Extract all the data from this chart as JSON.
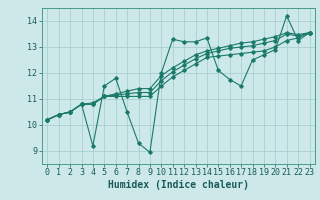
{
  "xlabel": "Humidex (Indice chaleur)",
  "bg_color": "#cce8e8",
  "grid_color": "#aad0d0",
  "line_color": "#1a7a6a",
  "x_data": [
    0,
    1,
    2,
    3,
    4,
    5,
    6,
    7,
    8,
    9,
    10,
    11,
    12,
    13,
    14,
    15,
    16,
    17,
    18,
    19,
    20,
    21,
    22,
    23
  ],
  "series": [
    [
      10.2,
      10.4,
      10.5,
      10.8,
      9.2,
      11.5,
      11.8,
      10.5,
      9.3,
      8.95,
      12.0,
      13.3,
      13.2,
      13.2,
      13.35,
      12.1,
      11.75,
      11.5,
      12.5,
      12.7,
      12.9,
      14.2,
      13.25,
      13.55
    ],
    [
      10.2,
      10.4,
      10.5,
      10.8,
      10.8,
      11.1,
      11.1,
      11.1,
      11.1,
      11.1,
      11.5,
      11.85,
      12.1,
      12.35,
      12.6,
      12.65,
      12.7,
      12.75,
      12.8,
      12.85,
      13.0,
      13.25,
      13.35,
      13.55
    ],
    [
      10.2,
      10.4,
      10.5,
      10.8,
      10.8,
      11.1,
      11.15,
      11.2,
      11.25,
      11.25,
      11.7,
      12.05,
      12.3,
      12.55,
      12.75,
      12.85,
      12.95,
      13.0,
      13.05,
      13.15,
      13.25,
      13.5,
      13.42,
      13.55
    ],
    [
      10.2,
      10.4,
      10.5,
      10.8,
      10.85,
      11.1,
      11.2,
      11.3,
      11.4,
      11.4,
      11.9,
      12.2,
      12.45,
      12.7,
      12.85,
      12.95,
      13.05,
      13.15,
      13.2,
      13.3,
      13.4,
      13.55,
      13.48,
      13.55
    ]
  ],
  "ylim": [
    8.5,
    14.5
  ],
  "yticks": [
    9,
    10,
    11,
    12,
    13,
    14
  ],
  "xticks": [
    0,
    1,
    2,
    3,
    4,
    5,
    6,
    7,
    8,
    9,
    10,
    11,
    12,
    13,
    14,
    15,
    16,
    17,
    18,
    19,
    20,
    21,
    22,
    23
  ],
  "xlim": [
    -0.5,
    23.5
  ],
  "tick_fontsize": 6,
  "xlabel_fontsize": 7
}
